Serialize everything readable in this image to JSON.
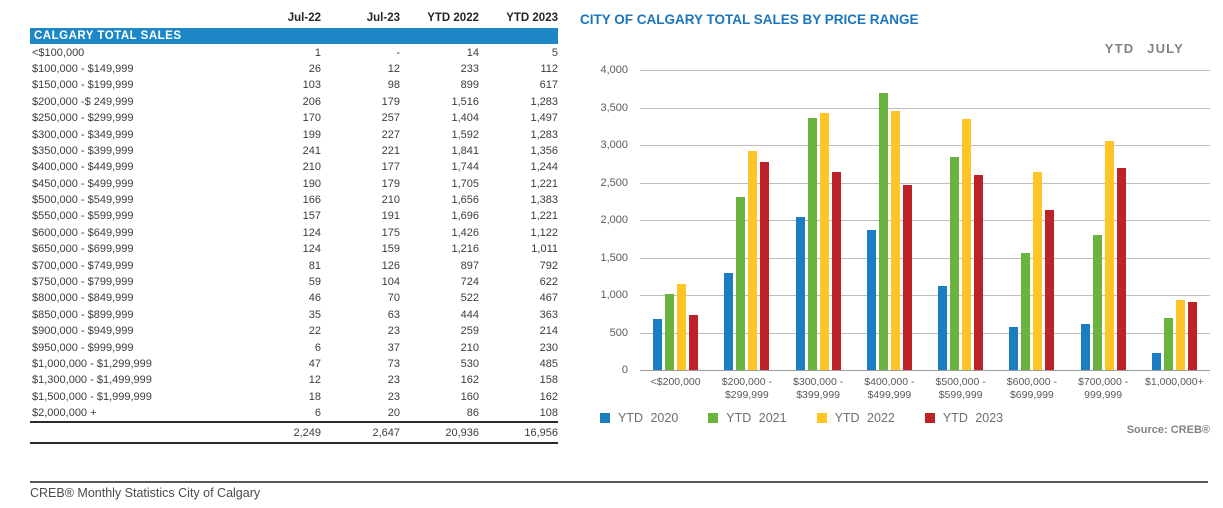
{
  "table": {
    "columns": [
      "",
      "Jul-22",
      "Jul-23",
      "YTD 2022",
      "YTD 2023"
    ],
    "section_title": "CALGARY TOTAL SALES",
    "rows": [
      {
        "label": "<$100,000",
        "values": [
          "1",
          "-",
          "14",
          "5"
        ]
      },
      {
        "label": "$100,000 - $149,999",
        "values": [
          "26",
          "12",
          "233",
          "112"
        ]
      },
      {
        "label": "$150,000 - $199,999",
        "values": [
          "103",
          "98",
          "899",
          "617"
        ]
      },
      {
        "label": "$200,000 -$ 249,999",
        "values": [
          "206",
          "179",
          "1,516",
          "1,283"
        ]
      },
      {
        "label": "$250,000 - $299,999",
        "values": [
          "170",
          "257",
          "1,404",
          "1,497"
        ]
      },
      {
        "label": "$300,000 - $349,999",
        "values": [
          "199",
          "227",
          "1,592",
          "1,283"
        ]
      },
      {
        "label": "$350,000 - $399,999",
        "values": [
          "241",
          "221",
          "1,841",
          "1,356"
        ]
      },
      {
        "label": "$400,000 - $449,999",
        "values": [
          "210",
          "177",
          "1,744",
          "1,244"
        ]
      },
      {
        "label": "$450,000 - $499,999",
        "values": [
          "190",
          "179",
          "1,705",
          "1,221"
        ]
      },
      {
        "label": "$500,000 - $549,999",
        "values": [
          "166",
          "210",
          "1,656",
          "1,383"
        ]
      },
      {
        "label": "$550,000 - $599,999",
        "values": [
          "157",
          "191",
          "1,696",
          "1,221"
        ]
      },
      {
        "label": "$600,000 - $649,999",
        "values": [
          "124",
          "175",
          "1,426",
          "1,122"
        ]
      },
      {
        "label": "$650,000 - $699,999",
        "values": [
          "124",
          "159",
          "1,216",
          "1,011"
        ]
      },
      {
        "label": "$700,000 - $749,999",
        "values": [
          "81",
          "126",
          "897",
          "792"
        ]
      },
      {
        "label": "$750,000 - $799,999",
        "values": [
          "59",
          "104",
          "724",
          "622"
        ]
      },
      {
        "label": "$800,000 - $849,999",
        "values": [
          "46",
          "70",
          "522",
          "467"
        ]
      },
      {
        "label": "$850,000 - $899,999",
        "values": [
          "35",
          "63",
          "444",
          "363"
        ]
      },
      {
        "label": "$900,000 - $949,999",
        "values": [
          "22",
          "23",
          "259",
          "214"
        ]
      },
      {
        "label": "$950,000 - $999,999",
        "values": [
          "6",
          "37",
          "210",
          "230"
        ]
      },
      {
        "label": "$1,000,000 - $1,299,999",
        "values": [
          "47",
          "73",
          "530",
          "485"
        ]
      },
      {
        "label": "$1,300,000 - $1,499,999",
        "values": [
          "12",
          "23",
          "162",
          "158"
        ]
      },
      {
        "label": "$1,500,000 - $1,999,999",
        "values": [
          "18",
          "23",
          "160",
          "162"
        ]
      },
      {
        "label": "$2,000,000 +",
        "values": [
          "6",
          "20",
          "86",
          "108"
        ]
      }
    ],
    "totals": [
      "2,249",
      "2,647",
      "20,936",
      "16,956"
    ]
  },
  "chart_data": {
    "type": "bar",
    "title": "CITY OF CALGARY TOTAL SALES BY PRICE RANGE",
    "subtitle": "YTD JULY",
    "source": "Source: CREB®",
    "categories": [
      "<$200,000",
      "$200,000 - $299,999",
      "$300,000 - $399,999",
      "$400,000 - $499,999",
      "$500,000 - $599,999",
      "$600,000 - $699,999",
      "$700,000 - 999,999",
      "$1,000,000+"
    ],
    "series": [
      {
        "name": "YTD 2020",
        "color": "#1B7EC2",
        "values": [
          680,
          1300,
          2040,
          1870,
          1120,
          580,
          610,
          230
        ]
      },
      {
        "name": "YTD 2021",
        "color": "#6BB33F",
        "values": [
          1020,
          2310,
          3360,
          3700,
          2840,
          1560,
          1800,
          700
        ]
      },
      {
        "name": "YTD 2022",
        "color": "#FFC527",
        "values": [
          1146,
          2920,
          3433,
          3449,
          3352,
          2642,
          3056,
          938
        ]
      },
      {
        "name": "YTD 2023",
        "color": "#BD2228",
        "values": [
          734,
          2780,
          2639,
          2465,
          2604,
          2133,
          2688,
          913
        ]
      }
    ],
    "ylim": [
      0,
      4000
    ],
    "y_tick_step": 500,
    "grid": true,
    "legend_position": "bottom"
  },
  "footer": {
    "text": "CREB® Monthly Statistics City of Calgary"
  },
  "colors": {
    "chart_title": "#1B75BC",
    "table_header_band": "#1E88C7",
    "gridline": "#BDBDBD",
    "axis_text": "#58595B",
    "legend_text": "#6D6E71",
    "footer_text": "#4B4B4D"
  }
}
